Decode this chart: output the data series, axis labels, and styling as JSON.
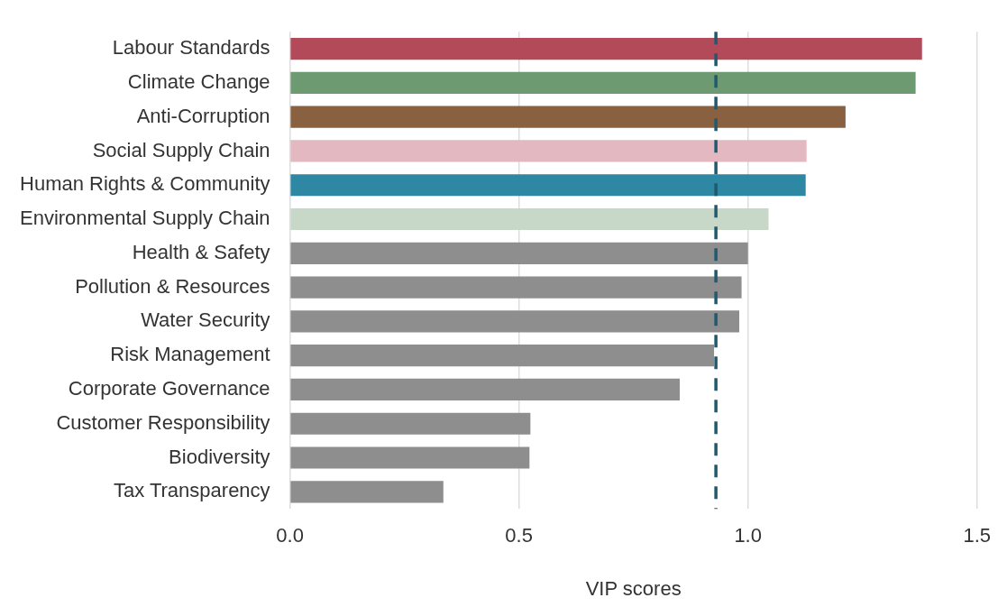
{
  "chart_data": {
    "type": "bar",
    "orientation": "horizontal",
    "xlabel": "VIP scores",
    "categories": [
      "Labour Standards",
      "Climate Change",
      "Anti-Corruption",
      "Social Supply Chain",
      "Human Rights & Community",
      "Environmental Supply Chain",
      "Health & Safety",
      "Pollution & Resources",
      "Water Security",
      "Risk Management",
      "Corporate Governance",
      "Customer Responsibility",
      "Biodiversity",
      "Tax Transparency"
    ],
    "values": [
      1.38,
      1.366,
      1.213,
      1.128,
      1.126,
      1.045,
      1.0,
      0.986,
      0.981,
      0.926,
      0.851,
      0.525,
      0.523,
      0.335
    ],
    "colors": [
      "#b34a5a",
      "#6e9a72",
      "#8a6140",
      "#e3b8c0",
      "#2e87a3",
      "#c8d8c8",
      "#8e8e8e",
      "#8e8e8e",
      "#8e8e8e",
      "#8e8e8e",
      "#8e8e8e",
      "#8e8e8e",
      "#8e8e8e",
      "#8e8e8e"
    ],
    "xlim": [
      0,
      1.5
    ],
    "xticks": [
      {
        "value": 0,
        "label": "0.0"
      },
      {
        "value": 0.5,
        "label": "0.5"
      },
      {
        "value": 1,
        "label": "1.0"
      },
      {
        "value": 1.5,
        "label": "1.5"
      }
    ],
    "ref_lines": [
      {
        "axis": "x",
        "value": 0.93,
        "color": "#1f5a70",
        "line_style": "dashed"
      }
    ],
    "grid": "x",
    "legend": false
  }
}
